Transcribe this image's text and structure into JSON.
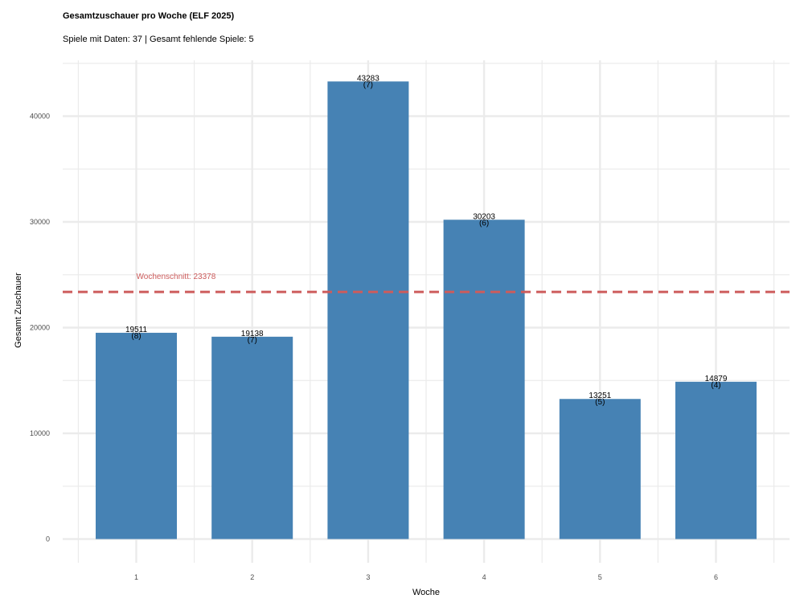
{
  "chart_data": {
    "type": "bar",
    "title": "Gesamtzuschauer pro Woche (ELF 2025)",
    "subtitle": "Spiele mit Daten: 37 | Gesamt fehlende Spiele: 5",
    "xlabel": "Woche",
    "ylabel": "Gesamt Zuschauer",
    "categories": [
      "1",
      "2",
      "3",
      "4",
      "5",
      "6"
    ],
    "values": [
      19511,
      19138,
      43283,
      30203,
      13251,
      14879
    ],
    "value_labels": [
      "19511",
      "19138",
      "43283",
      "30203",
      "13251",
      "14879"
    ],
    "game_counts": [
      "(8)",
      "(7)",
      "(7)",
      "(6)",
      "(5)",
      "(4)"
    ],
    "ylim": [
      0,
      45000
    ],
    "yticks": [
      0,
      10000,
      20000,
      30000,
      40000
    ],
    "ytick_labels": [
      "0",
      "10000",
      "20000",
      "30000",
      "40000"
    ],
    "reference_line": {
      "value": 23378,
      "label": "Wochenschnitt: 23378",
      "style": "dashed"
    },
    "grid": true,
    "legend": "none",
    "colors": {
      "bar": "#4682b4",
      "reference": "#cd5c5c",
      "grid": "#ebebeb"
    }
  }
}
